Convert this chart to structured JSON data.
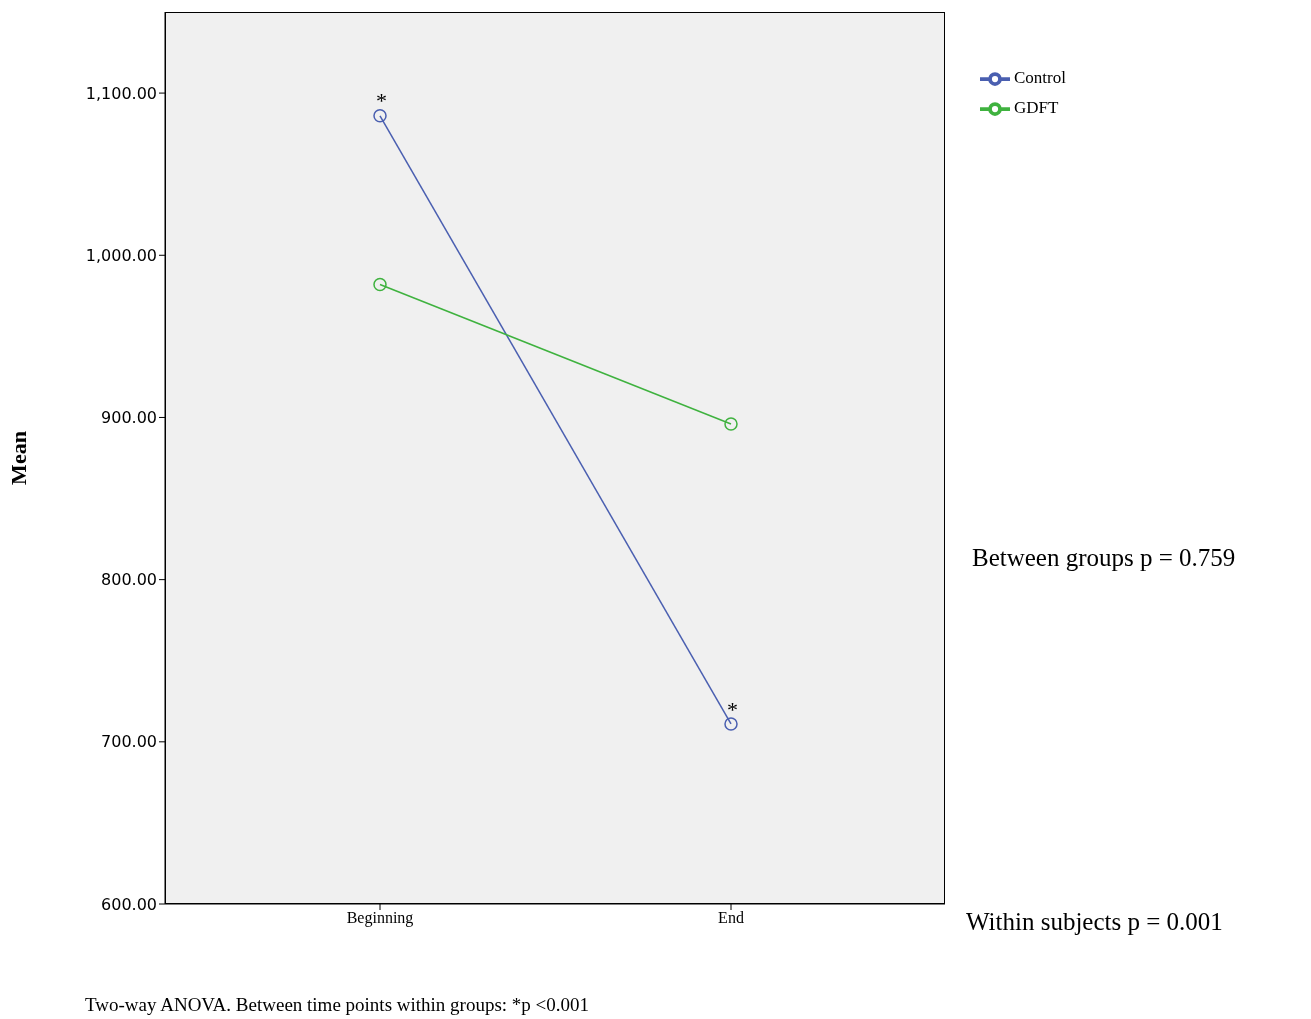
{
  "chart_data": {
    "type": "line",
    "ylabel": "Mean",
    "categories": [
      "Beginning",
      "End"
    ],
    "series": [
      {
        "name": "Control",
        "color": "#4a5fb0",
        "values": [
          1086,
          711
        ]
      },
      {
        "name": "GDFT",
        "color": "#3fb23f",
        "values": [
          982,
          896
        ]
      }
    ],
    "ylim": [
      600,
      1150
    ],
    "yticks": [
      {
        "value": 600,
        "label": "600.00"
      },
      {
        "value": 700,
        "label": "700.00"
      },
      {
        "value": 800,
        "label": "800.00"
      },
      {
        "value": 900,
        "label": "900.00"
      },
      {
        "value": 1000,
        "label": "1,000.00"
      },
      {
        "value": 1100,
        "label": "1,100.00"
      }
    ],
    "grid": false,
    "legend": "top right",
    "marker": "circle",
    "line_style": "solid",
    "annotations": [
      {
        "text": "*",
        "x": "Beginning",
        "y": 1086
      },
      {
        "text": "*",
        "x": "End",
        "y": 711
      },
      "Between groups p = 0.759",
      "Within subjects p = 0.001",
      "Two-way ANOVA. Between time points within groups: *p <0.001"
    ]
  }
}
